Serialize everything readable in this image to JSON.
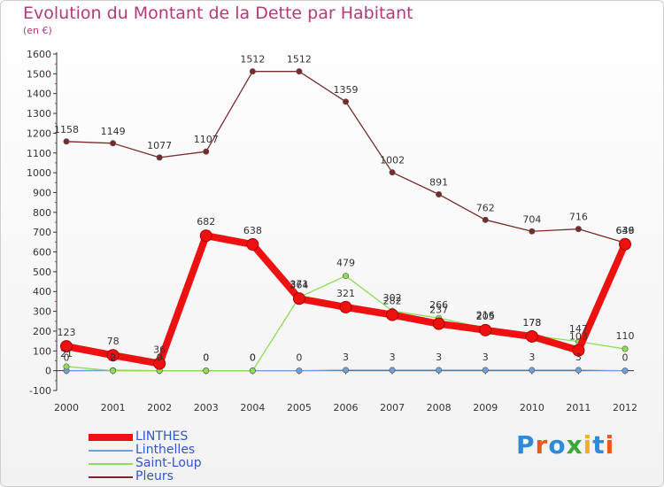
{
  "chart_data": {
    "type": "line",
    "title": "Evolution du Montant de la Dette par Habitant",
    "subtitle": "(en €)",
    "xlabel": "",
    "ylabel": "",
    "x": [
      "2000",
      "2001",
      "2002",
      "2003",
      "2004",
      "2005",
      "2006",
      "2007",
      "2008",
      "2009",
      "2010",
      "2011",
      "2012"
    ],
    "ylim": [
      -100,
      1600
    ],
    "yticks": [
      -100,
      0,
      100,
      200,
      300,
      400,
      500,
      600,
      700,
      800,
      900,
      1000,
      1100,
      1200,
      1300,
      1400,
      1500,
      1600
    ],
    "grid": false,
    "legend_position": "bottom-left",
    "series": [
      {
        "name": "LINTHES",
        "color": "#ee1111",
        "values": [
          123,
          78,
          36,
          682,
          638,
          364,
          321,
          282,
          237,
          205,
          173,
          103,
          639
        ],
        "labels": [
          "123",
          "78",
          "36",
          "682",
          "638",
          "364",
          "321",
          "282",
          "237",
          "205",
          "173",
          "103",
          "639"
        ]
      },
      {
        "name": "Linthelles",
        "color": "#6fa1d6",
        "values": [
          0,
          2,
          0,
          0,
          0,
          0,
          3,
          3,
          3,
          3,
          3,
          3,
          0
        ],
        "labels": [
          "0",
          "2",
          "0",
          "0",
          "0",
          "0",
          "3",
          "3",
          "3",
          "3",
          "3",
          "3",
          "0"
        ]
      },
      {
        "name": "Saint-Loup",
        "color": "#8fdc5a",
        "values": [
          21,
          0,
          0,
          0,
          0,
          371,
          479,
          302,
          266,
          216,
          178,
          147,
          110
        ],
        "labels": [
          "21",
          "0",
          "0",
          "0",
          "0",
          "371",
          "479",
          "302",
          "266",
          "216",
          "178",
          "147",
          "110"
        ]
      },
      {
        "name": "Pleurs",
        "color": "#7a2a2a",
        "values": [
          1158,
          1149,
          1077,
          1107,
          1512,
          1512,
          1359,
          1002,
          891,
          762,
          704,
          716,
          646
        ],
        "labels": [
          "1158",
          "1149",
          "1077",
          "1107",
          "1512",
          "1512",
          "1359",
          "1002",
          "891",
          "762",
          "704",
          "716",
          "646"
        ]
      }
    ]
  },
  "logo": {
    "text": "Proxiti"
  }
}
